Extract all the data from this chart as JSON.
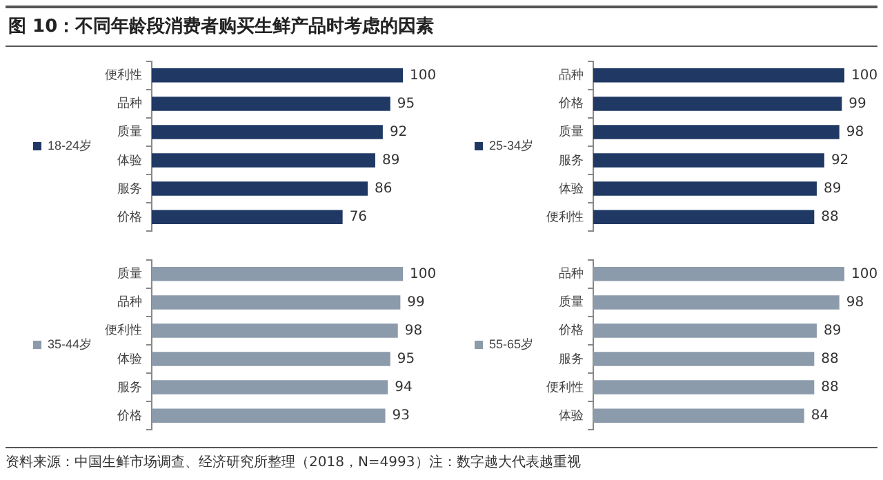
{
  "chart_data": [
    {
      "type": "bar",
      "orientation": "horizontal",
      "title": "图 10：不同年龄段消费者购买生鲜产品时考虑的因素",
      "categories": [
        "便利性",
        "品种",
        "质量",
        "体验",
        "服务",
        "价格"
      ],
      "series": [
        {
          "name": "18-24岁",
          "color": "#1f3864",
          "values": [
            100,
            95,
            92,
            89,
            86,
            76
          ]
        }
      ],
      "data_labels": true,
      "legend": "left",
      "tick_labels": "y",
      "grid": false
    },
    {
      "type": "bar",
      "orientation": "horizontal",
      "categories": [
        "品种",
        "价格",
        "质量",
        "服务",
        "体验",
        "便利性"
      ],
      "series": [
        {
          "name": "25-34岁",
          "color": "#1f3864",
          "values": [
            100,
            99,
            98,
            92,
            89,
            88
          ]
        }
      ],
      "data_labels": true,
      "legend": "left",
      "tick_labels": "y",
      "grid": false
    },
    {
      "type": "bar",
      "orientation": "horizontal",
      "categories": [
        "质量",
        "品种",
        "便利性",
        "体验",
        "服务",
        "价格"
      ],
      "series": [
        {
          "name": "35-44岁",
          "color": "#8c9bab",
          "values": [
            100,
            99,
            98,
            95,
            94,
            93
          ]
        }
      ],
      "data_labels": true,
      "legend": "left",
      "tick_labels": "y",
      "grid": false
    },
    {
      "type": "bar",
      "orientation": "horizontal",
      "categories": [
        "品种",
        "质量",
        "价格",
        "服务",
        "便利性",
        "体验"
      ],
      "series": [
        {
          "name": "55-65岁",
          "color": "#8c9bab",
          "values": [
            100,
            98,
            89,
            88,
            88,
            84
          ]
        }
      ],
      "data_labels": true,
      "legend": "left",
      "tick_labels": "y",
      "grid": false,
      "annotations": [
        "资料来源：中国生鲜市场调查、经济研究所整理（2018，N=4993）注：数字越大代表越重视"
      ]
    }
  ]
}
